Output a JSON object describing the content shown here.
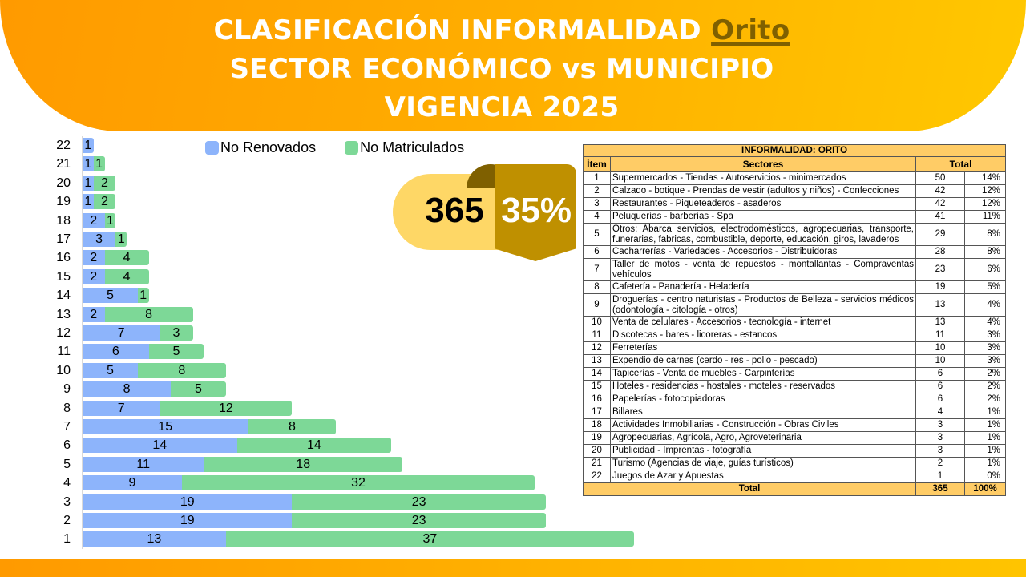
{
  "header": {
    "line1_prefix": "CLASIFICACIÓN INFORMALIDAD ",
    "line1_highlight": "Orito",
    "line2": "SECTOR ECONÓMICO vs MUNICIPIO",
    "line3": "VIGENCIA 2025"
  },
  "colors": {
    "no_renovados": "#8db4fb",
    "no_matriculados": "#7dd897",
    "banner_start": "#ff9a00",
    "banner_end": "#ffc800",
    "table_header": "#ffcc66",
    "badge_light": "#fed766",
    "badge_dark": "#bf9000"
  },
  "badge": {
    "total": "365",
    "percent": "35%"
  },
  "legend": [
    {
      "label": "No Renovados",
      "color": "#8db4fb"
    },
    {
      "label": "No Matriculados",
      "color": "#7dd897"
    }
  ],
  "chart_data": {
    "type": "bar",
    "orientation": "horizontal",
    "stacked": true,
    "title": "",
    "xlabel": "",
    "ylabel": "Ítem",
    "grid": false,
    "legend_position": "top",
    "categories": [
      "22",
      "21",
      "20",
      "19",
      "18",
      "17",
      "16",
      "15",
      "14",
      "13",
      "12",
      "11",
      "10",
      "9",
      "8",
      "7",
      "6",
      "5",
      "4",
      "3",
      "2",
      "1"
    ],
    "series": [
      {
        "name": "No Renovados",
        "color": "#8db4fb",
        "values": [
          1,
          1,
          1,
          1,
          2,
          3,
          2,
          2,
          5,
          2,
          7,
          6,
          5,
          8,
          7,
          15,
          14,
          11,
          9,
          19,
          19,
          13
        ]
      },
      {
        "name": "No Matriculados",
        "color": "#7dd897",
        "values": [
          0,
          1,
          2,
          2,
          1,
          1,
          4,
          4,
          1,
          8,
          3,
          5,
          8,
          5,
          12,
          8,
          14,
          18,
          32,
          23,
          23,
          37
        ]
      }
    ],
    "xlim": [
      0,
      50
    ]
  },
  "table": {
    "caption": "INFORMALIDAD: ORITO",
    "headers": {
      "item": "Ítem",
      "sectores": "Sectores",
      "total": "Total"
    },
    "rows": [
      {
        "item": "1",
        "sector": "Supermercados - Tiendas - Autoservicios - minimercados",
        "total": "50",
        "pct": "14%"
      },
      {
        "item": "2",
        "sector": "Calzado - botique - Prendas de vestir (adultos y niños) - Confecciones",
        "total": "42",
        "pct": "12%"
      },
      {
        "item": "3",
        "sector": "Restaurantes - Piqueteaderos - asaderos",
        "total": "42",
        "pct": "12%"
      },
      {
        "item": "4",
        "sector": "Peluquerías - barberías - Spa",
        "total": "41",
        "pct": "11%"
      },
      {
        "item": "5",
        "sector": "Otros: Abarca servicios, electrodomésticos, agropecuarias, transporte, funerarias, fabricas, combustible, deporte,  educación, giros, lavaderos",
        "total": "29",
        "pct": "8%"
      },
      {
        "item": "6",
        "sector": "Cacharrerías - Variedades - Accesorios - Distribuidoras",
        "total": "28",
        "pct": "8%"
      },
      {
        "item": "7",
        "sector": "Taller de motos - venta de repuestos - montallantas - Compraventas vehículos",
        "total": "23",
        "pct": "6%"
      },
      {
        "item": "8",
        "sector": "Cafetería - Panadería - Heladería",
        "total": "19",
        "pct": "5%"
      },
      {
        "item": "9",
        "sector": "Droguerías - centro naturistas - Productos de Belleza - servicios médicos (odontología - citología - otros)",
        "total": "13",
        "pct": "4%"
      },
      {
        "item": "10",
        "sector": "Venta de celulares - Accesorios - tecnología - internet",
        "total": "13",
        "pct": "4%"
      },
      {
        "item": "11",
        "sector": "Discotecas - bares - licoreras - estancos",
        "total": "11",
        "pct": "3%"
      },
      {
        "item": "12",
        "sector": "Ferreterías",
        "total": "10",
        "pct": "3%"
      },
      {
        "item": "13",
        "sector": "Expendio de carnes (cerdo - res - pollo - pescado)",
        "total": "10",
        "pct": "3%"
      },
      {
        "item": "14",
        "sector": "Tapicerías - Venta de muebles - Carpinterías",
        "total": "6",
        "pct": "2%"
      },
      {
        "item": "15",
        "sector": "Hoteles - residencias - hostales - moteles - reservados",
        "total": "6",
        "pct": "2%"
      },
      {
        "item": "16",
        "sector": "Papelerías - fotocopiadoras",
        "total": "6",
        "pct": "2%"
      },
      {
        "item": "17",
        "sector": "Billares",
        "total": "4",
        "pct": "1%"
      },
      {
        "item": "18",
        "sector": "Actividades Inmobiliarias - Construcción - Obras Civiles",
        "total": "3",
        "pct": "1%"
      },
      {
        "item": "19",
        "sector": "Agropecuarias, Agrícola, Agro, Agroveterinaria",
        "total": "3",
        "pct": "1%"
      },
      {
        "item": "20",
        "sector": "Publicidad - Imprentas - fotografía",
        "total": "3",
        "pct": "1%"
      },
      {
        "item": "21",
        "sector": "Turismo (Agencias de viaje, guías turísticos)",
        "total": "2",
        "pct": "1%"
      },
      {
        "item": "22",
        "sector": "Juegos de Azar y Apuestas",
        "total": "1",
        "pct": "0%"
      }
    ],
    "total_row": {
      "label": "Total",
      "total": "365",
      "pct": "100%"
    }
  }
}
